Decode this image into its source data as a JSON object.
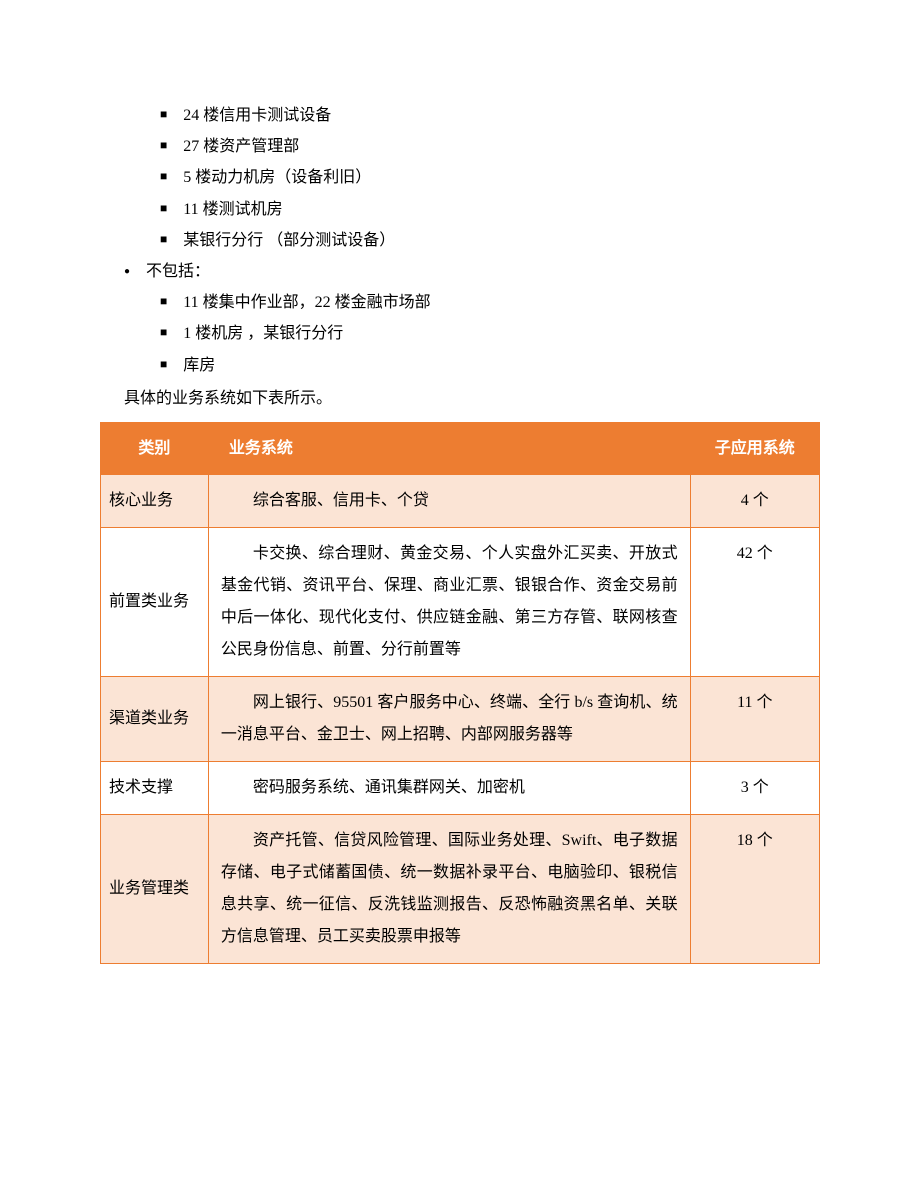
{
  "list_level2_group1": {
    "items": [
      "24 楼信用卡测试设备",
      "27 楼资产管理部",
      "5 楼动力机房（设备利旧）",
      "11 楼测试机房",
      "某银行分行 （部分测试设备）"
    ]
  },
  "list_level1": {
    "items": [
      "不包括："
    ]
  },
  "list_level2_group2": {
    "items": [
      "11 楼集中作业部，22 楼金融市场部",
      "1 楼机房 ，某银行分行",
      "库房"
    ]
  },
  "intro": "具体的业务系统如下表所示。",
  "table": {
    "header_bg": "#ed7d31",
    "header_fg": "#ffffff",
    "border_color": "#ed7d31",
    "odd_row_bg": "#fbe4d5",
    "even_row_bg": "#ffffff",
    "columns": [
      "类别",
      "业务系统",
      "子应用系统"
    ],
    "rows": [
      {
        "category": "核心业务",
        "system": "综合客服、信用卡、个贷",
        "count": "4 个"
      },
      {
        "category": "前置类业务",
        "system": "卡交换、综合理财、黄金交易、个人实盘外汇买卖、开放式基金代销、资讯平台、保理、商业汇票、银银合作、资金交易前中后一体化、现代化支付、供应链金融、第三方存管、联网核查公民身份信息、前置、分行前置等",
        "count": "42 个"
      },
      {
        "category": "渠道类业务",
        "system": "网上银行、95501 客户服务中心、终端、全行 b/s 查询机、统一消息平台、金卫士、网上招聘、内部网服务器等",
        "count": "11 个"
      },
      {
        "category": "技术支撑",
        "system": "密码服务系统、通讯集群网关、加密机",
        "count": "3 个"
      },
      {
        "category": "业务管理类",
        "system": "资产托管、信贷风险管理、国际业务处理、Swift、电子数据存储、电子式储蓄国债、统一数据补录平台、电脑验印、银税信息共享、统一征信、反洗钱监测报告、反恐怖融资黑名单、关联方信息管理、员工买卖股票申报等",
        "count": "18 个"
      }
    ]
  }
}
